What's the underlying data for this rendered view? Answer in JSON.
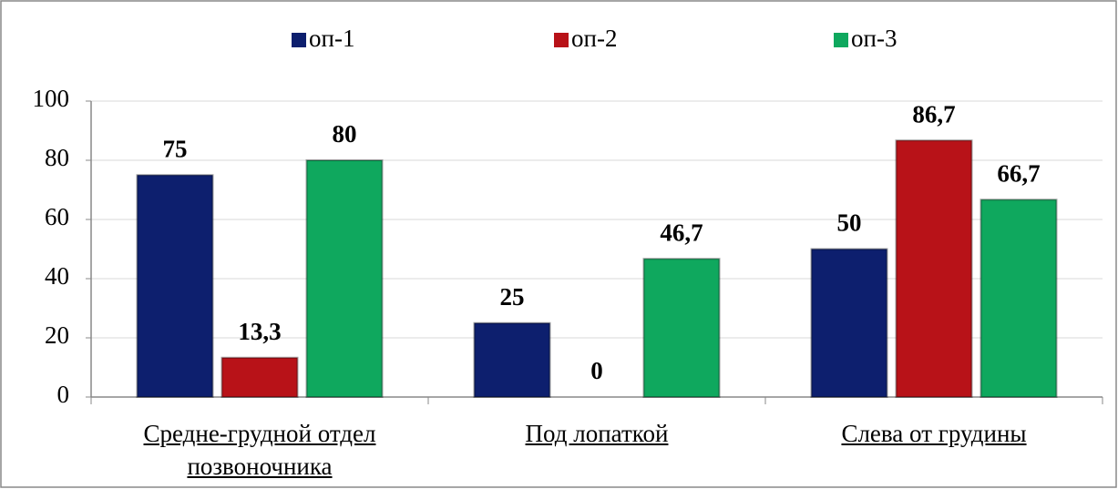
{
  "chart_data": {
    "type": "bar",
    "categories": [
      "Средне-грудной отдел позвоночника",
      "Под лопаткой",
      "Слева от грудины"
    ],
    "series": [
      {
        "name": "оп-1",
        "color": "#0d1f6e",
        "values": [
          75,
          25,
          50
        ],
        "value_labels": [
          "75",
          "25",
          "50"
        ]
      },
      {
        "name": "оп-2",
        "color": "#b81218",
        "values": [
          13.3,
          0,
          86.7
        ],
        "value_labels": [
          "13,3",
          "0",
          "86,7"
        ]
      },
      {
        "name": "оп-3",
        "color": "#0fa85e",
        "values": [
          80,
          46.7,
          66.7
        ],
        "value_labels": [
          "80",
          "46,7",
          "66,7"
        ]
      }
    ],
    "ylim": [
      0,
      100
    ],
    "yticks": [
      0,
      20,
      40,
      60,
      80,
      100
    ],
    "grid": true,
    "legend": "top"
  }
}
